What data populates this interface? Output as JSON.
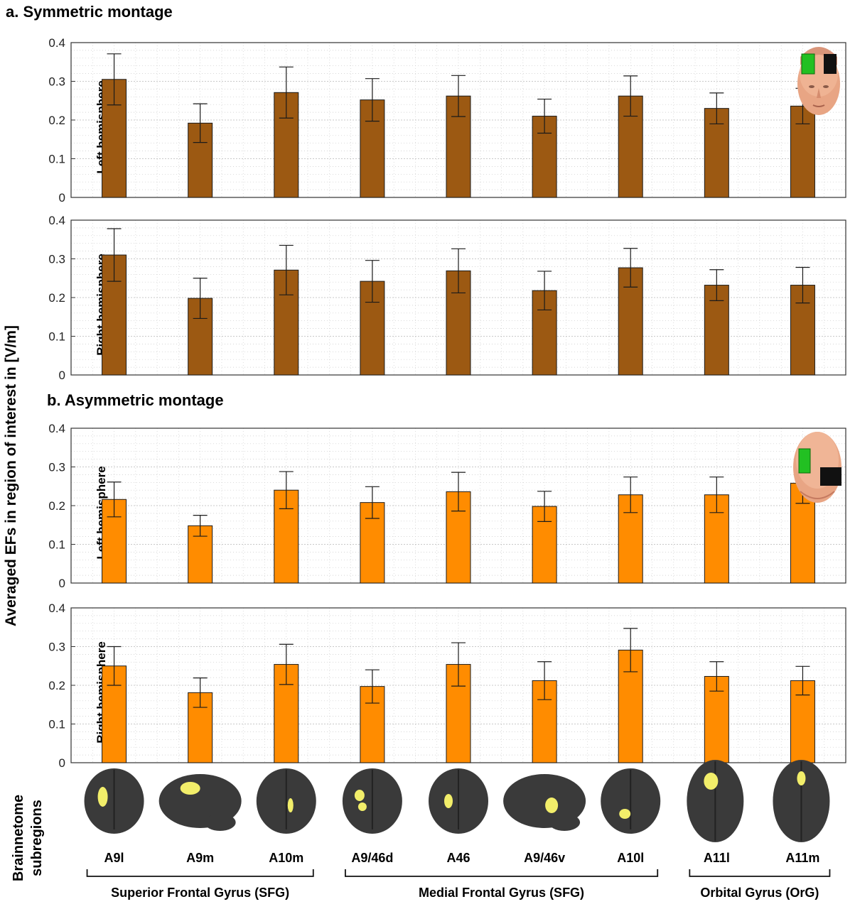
{
  "figure": {
    "y_axis_label": "Averaged EFs in region of interest in [V/m]",
    "section_a_title": "a. Symmetric montage",
    "section_b_title": "b. Asymmetric montage",
    "brainnetome_label_line1": "Brainnetome",
    "brainnetome_label_line2": "subregions",
    "colors": {
      "symmetric": "#9C5912",
      "asymmetric": "#FF8C00",
      "grid": "#C8C8C8",
      "brain": "#3A3A3A",
      "roi": "#F2EE6A"
    },
    "icons": [
      "head-front-montage-icon",
      "head-top-montage-icon",
      "brain-region-icon"
    ]
  },
  "chart_data": [
    {
      "type": "bar",
      "panel": "a",
      "ylabel": "Left hemisphere",
      "ylim": [
        0,
        0.4
      ],
      "yticks": [
        "0",
        "0.1",
        "0.2",
        "0.3",
        "0.4"
      ],
      "categories": [
        "A9l",
        "A9m",
        "A10m",
        "A9/46d",
        "A46",
        "A9/46v",
        "A10l",
        "A11l",
        "A11m"
      ],
      "values": [
        0.305,
        0.192,
        0.271,
        0.252,
        0.262,
        0.21,
        0.262,
        0.23,
        0.236
      ],
      "errors": [
        0.066,
        0.05,
        0.066,
        0.055,
        0.053,
        0.044,
        0.052,
        0.04,
        0.046
      ],
      "grid": true
    },
    {
      "type": "bar",
      "panel": "a",
      "ylabel": "Right hemisphere",
      "ylim": [
        0,
        0.4
      ],
      "yticks": [
        "0",
        "0.1",
        "0.2",
        "0.3",
        "0.4"
      ],
      "categories": [
        "A9l",
        "A9m",
        "A10m",
        "A9/46d",
        "A46",
        "A9/46v",
        "A10l",
        "A11l",
        "A11m"
      ],
      "values": [
        0.31,
        0.198,
        0.271,
        0.242,
        0.269,
        0.218,
        0.277,
        0.232,
        0.232
      ],
      "errors": [
        0.068,
        0.052,
        0.064,
        0.054,
        0.057,
        0.05,
        0.05,
        0.04,
        0.046
      ],
      "grid": true
    },
    {
      "type": "bar",
      "panel": "b",
      "ylabel": "Left hemisphere",
      "ylim": [
        0,
        0.4
      ],
      "yticks": [
        "0",
        "0.1",
        "0.2",
        "0.3",
        "0.4"
      ],
      "categories": [
        "A9l",
        "A9m",
        "A10m",
        "A9/46d",
        "A46",
        "A9/46v",
        "A10l",
        "A11l",
        "A11m"
      ],
      "values": [
        0.216,
        0.148,
        0.24,
        0.208,
        0.236,
        0.198,
        0.228,
        0.228,
        0.258
      ],
      "errors": [
        0.045,
        0.027,
        0.048,
        0.041,
        0.05,
        0.039,
        0.046,
        0.046,
        0.052
      ],
      "grid": true
    },
    {
      "type": "bar",
      "panel": "b",
      "ylabel": "Right hemisphere",
      "ylim": [
        0,
        0.4
      ],
      "yticks": [
        "0",
        "0.1",
        "0.2",
        "0.3",
        "0.4"
      ],
      "categories": [
        "A9l",
        "A9m",
        "A10m",
        "A9/46d",
        "A46",
        "A9/46v",
        "A10l",
        "A11l",
        "A11m"
      ],
      "values": [
        0.25,
        0.181,
        0.254,
        0.197,
        0.254,
        0.212,
        0.291,
        0.223,
        0.212
      ],
      "errors": [
        0.05,
        0.038,
        0.052,
        0.043,
        0.056,
        0.049,
        0.056,
        0.038,
        0.037
      ],
      "grid": true
    }
  ],
  "regions": [
    "A9l",
    "A9m",
    "A10m",
    "A9/46d",
    "A46",
    "A9/46v",
    "A10l",
    "A11l",
    "A11m"
  ],
  "groups": [
    {
      "label": "Superior Frontal Gyrus (SFG)",
      "from": 0,
      "to": 2
    },
    {
      "label": "Medial Frontal Gyrus (SFG)",
      "from": 3,
      "to": 6
    },
    {
      "label": "Orbital Gyrus (OrG)",
      "from": 7,
      "to": 8
    }
  ]
}
